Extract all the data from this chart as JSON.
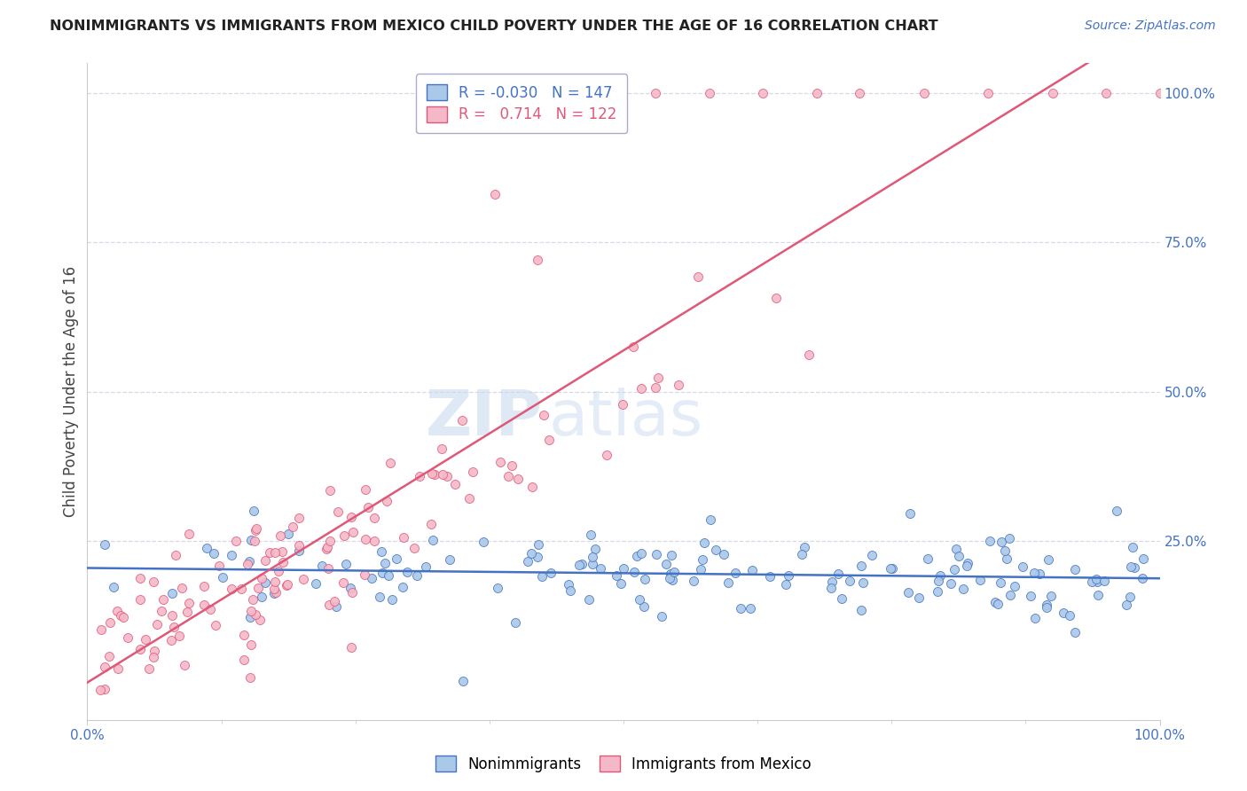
{
  "title": "NONIMMIGRANTS VS IMMIGRANTS FROM MEXICO CHILD POVERTY UNDER THE AGE OF 16 CORRELATION CHART",
  "source": "Source: ZipAtlas.com",
  "ylabel": "Child Poverty Under the Age of 16",
  "blue_R": -0.03,
  "blue_N": 147,
  "pink_R": 0.714,
  "pink_N": 122,
  "blue_color": "#aac8e8",
  "pink_color": "#f5b8c8",
  "blue_line_color": "#4472c4",
  "pink_line_color": "#e05878",
  "watermark_zip": "ZIP",
  "watermark_atlas": "atlas",
  "xlim": [
    0,
    1
  ],
  "ylim": [
    -0.05,
    1.05
  ],
  "plot_ylim": [
    0,
    1
  ],
  "ytick_vals": [
    0.25,
    0.5,
    0.75,
    1.0
  ],
  "ytick_labels": [
    "25.0%",
    "50.0%",
    "75.0%",
    "100.0%"
  ],
  "xtick_vals": [
    0.0,
    1.0
  ],
  "xtick_labels": [
    "0.0%",
    "100.0%"
  ],
  "legend_labels": [
    "Nonimmigrants",
    "Immigrants from Mexico"
  ],
  "background_color": "#ffffff",
  "grid_color": "#d8d8e8",
  "tick_color": "#4472c4",
  "title_color": "#222222",
  "source_color": "#4472c4",
  "ylabel_color": "#444444"
}
